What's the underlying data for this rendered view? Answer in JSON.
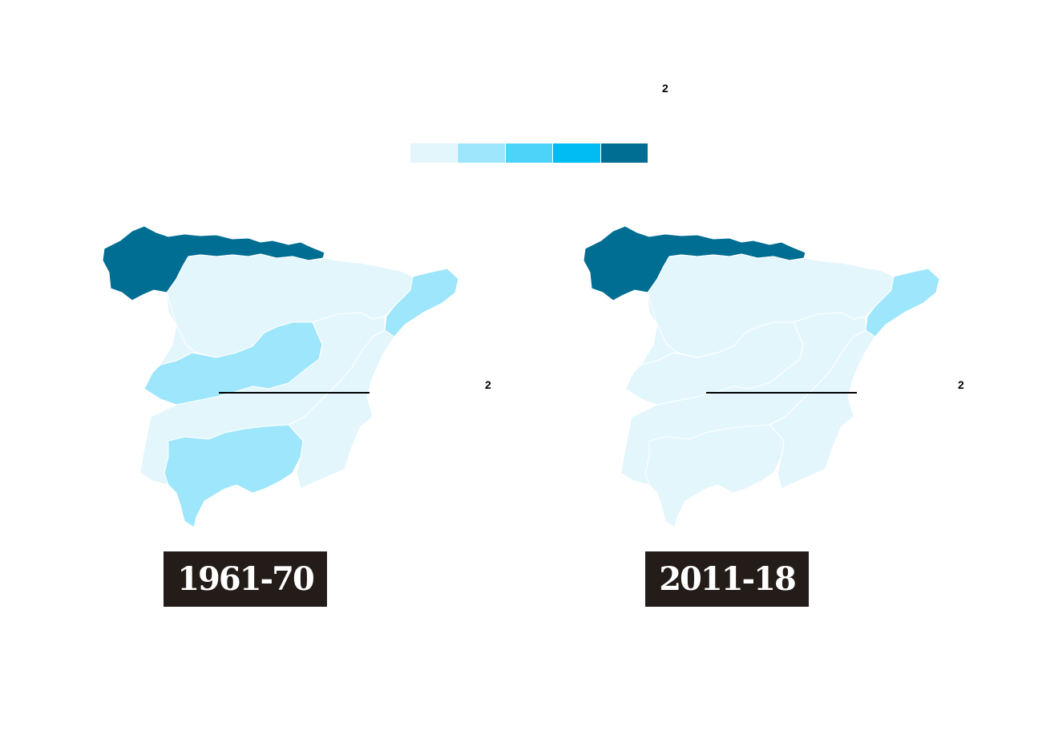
{
  "colors": {
    "scale": [
      "#e3f6fc",
      "#9de6fb",
      "#4dd3fa",
      "#00bcf2",
      "#006d92"
    ],
    "label_box": "#231c19"
  },
  "legend": {
    "swatch_count": 5
  },
  "notes": {
    "top": "2",
    "left_map": "2",
    "right_map": "2"
  },
  "maps": [
    {
      "period": "1961-70",
      "region_classes": {
        "north_coast": 4,
        "interior": 0,
        "north_meseta": 0,
        "northeast": 1,
        "central_band": 1,
        "south": 1,
        "southeast": 0
      }
    },
    {
      "period": "2011-18",
      "region_classes": {
        "north_coast": 4,
        "interior": 0,
        "north_meseta": 0,
        "northeast": 1,
        "central_band": 0,
        "south": 0,
        "southeast": 0
      }
    }
  ]
}
